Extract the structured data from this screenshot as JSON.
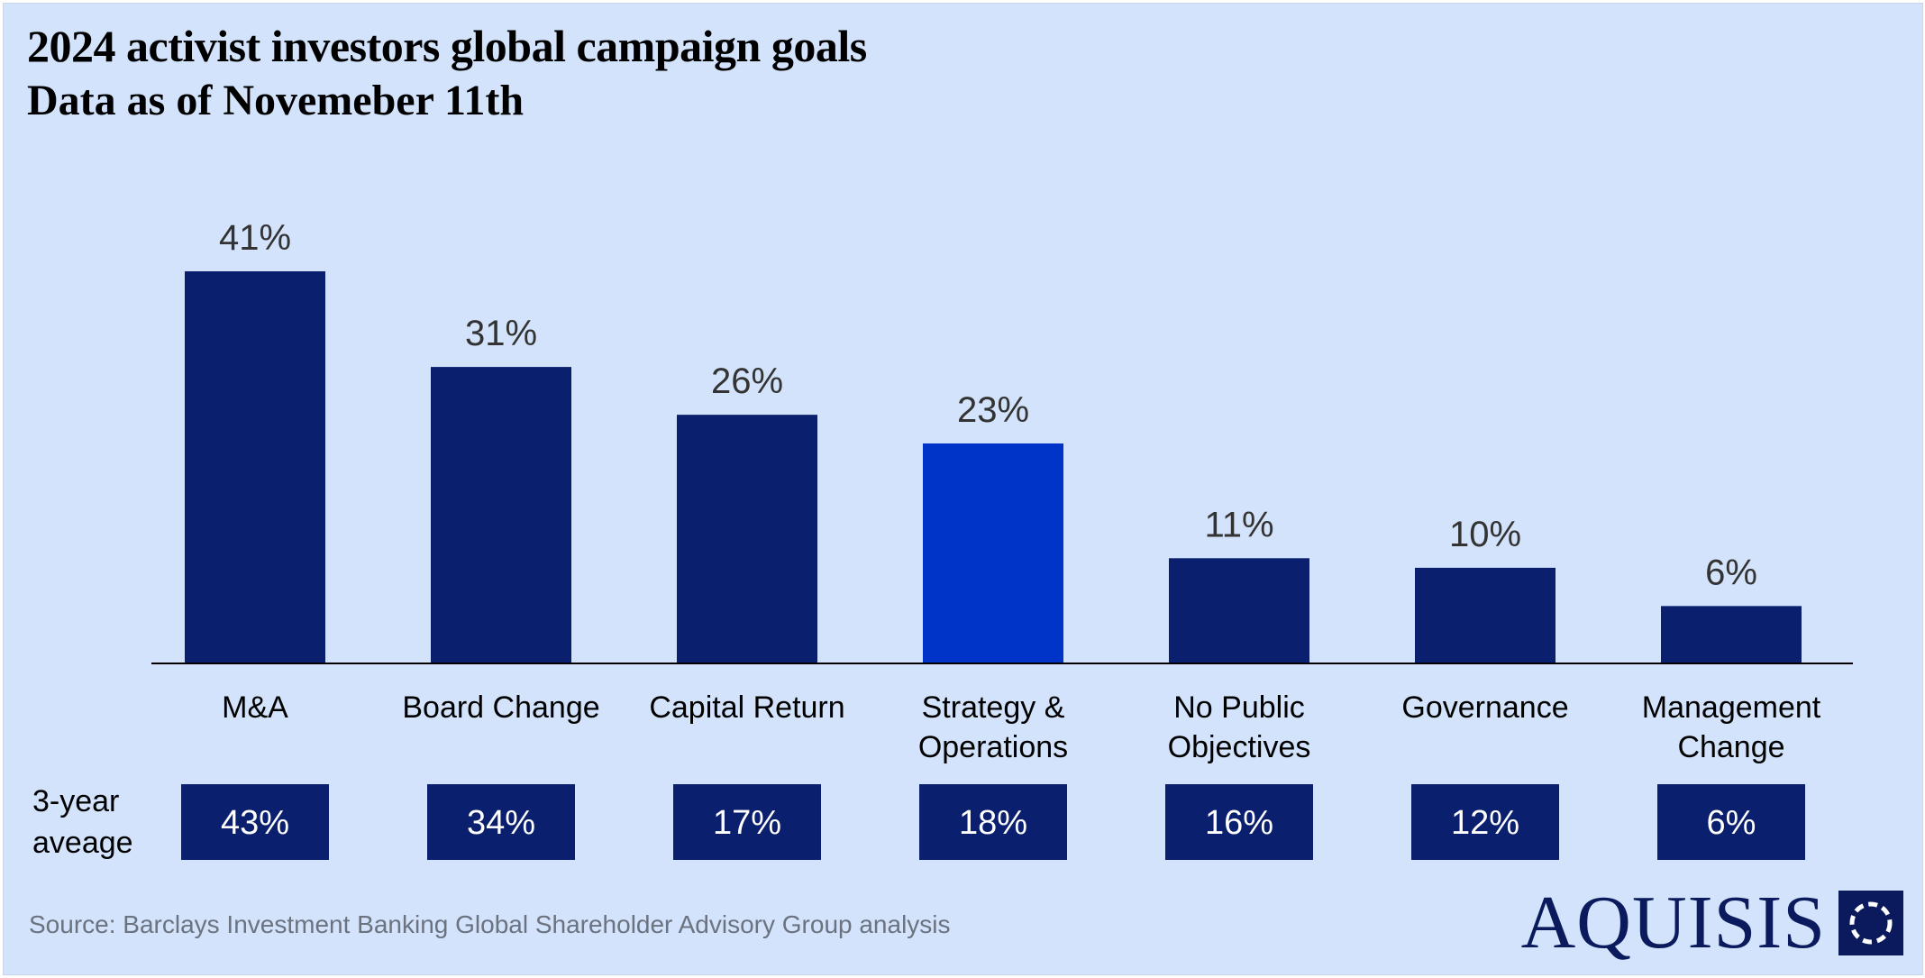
{
  "title": "2024 activist investors global campaign goals",
  "subtitle": "Data as of Novemeber 11th",
  "avg_row_label": "3-year aveage",
  "source": "Source: Barclays Investment Banking Global Shareholder Advisory Group analysis",
  "brand": {
    "name": "AQUISIS",
    "logo_icon": "dashed-circle-square-icon"
  },
  "colors": {
    "background": "#d3e3fb",
    "bar": "#0a1f6e",
    "bar_highlight": "#0033c8",
    "avg_box": "#0a1f6e",
    "brand": "#0a1a5c"
  },
  "chart_data": {
    "type": "bar",
    "title": "2024 activist investors global campaign goals",
    "subtitle": "Data as of Novemeber 11th",
    "unit": "%",
    "categories": [
      [
        "M&A"
      ],
      [
        "Board Change"
      ],
      [
        "Capital Return"
      ],
      [
        "Strategy &",
        "Operations"
      ],
      [
        "No Public",
        "Objectives"
      ],
      [
        "Governance"
      ],
      [
        "Management",
        "Change"
      ]
    ],
    "values": [
      41,
      31,
      26,
      23,
      11,
      10,
      6
    ],
    "value_labels": [
      "41%",
      "31%",
      "26%",
      "23%",
      "11%",
      "10%",
      "6%"
    ],
    "highlight_index": 3,
    "three_year_average": {
      "label": "3-year aveage",
      "values": [
        43,
        34,
        17,
        18,
        16,
        12,
        6
      ],
      "labels": [
        "43%",
        "34%",
        "17%",
        "18%",
        "16%",
        "12%",
        "6%"
      ]
    },
    "ylim": [
      0,
      41
    ],
    "xlabel": "",
    "ylabel": "",
    "grid": false
  }
}
